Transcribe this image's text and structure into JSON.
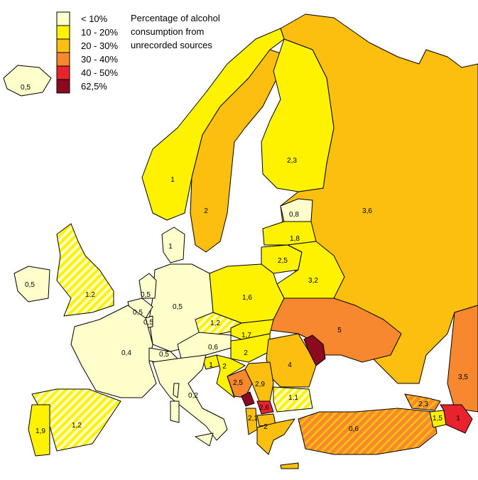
{
  "legend": {
    "title_lines": [
      "Percentage of alcohol",
      "consumption from",
      "unrecorded sources"
    ],
    "items": [
      {
        "label": "< 10%",
        "color": "#FFFFCC"
      },
      {
        "label": "10 - 20%",
        "color": "#FFF200"
      },
      {
        "label": "20 - 30%",
        "color": "#FDBF0F"
      },
      {
        "label": "30 - 40%",
        "color": "#F7882F"
      },
      {
        "label": "40 - 50%",
        "color": "#E8232D"
      },
      {
        "label": "62,5%",
        "color": "#8B0A1E"
      }
    ]
  },
  "colors": {
    "sea": "#ffffff",
    "border": "#000000",
    "hatch": "#FFFFCC"
  },
  "regions": [
    {
      "name": "iceland",
      "value": "0,5"
    },
    {
      "name": "ireland",
      "value": "0,5"
    },
    {
      "name": "united-kingdom",
      "value": "1,2"
    },
    {
      "name": "norway",
      "value": "1"
    },
    {
      "name": "sweden",
      "value": "2"
    },
    {
      "name": "finland",
      "value": "2,3"
    },
    {
      "name": "russia",
      "value": "3,6"
    },
    {
      "name": "estonia",
      "value": "0,8"
    },
    {
      "name": "latvia",
      "value": "1,8"
    },
    {
      "name": "lithuania",
      "value": "2,5"
    },
    {
      "name": "belarus",
      "value": "3,2"
    },
    {
      "name": "denmark",
      "value": "1"
    },
    {
      "name": "netherlands",
      "value": "0,5"
    },
    {
      "name": "belgium",
      "value": "0,5"
    },
    {
      "name": "luxembourg",
      "value": "0,5"
    },
    {
      "name": "germany",
      "value": "0,5"
    },
    {
      "name": "poland",
      "value": "1,6"
    },
    {
      "name": "czech-republic",
      "value": "1,2"
    },
    {
      "name": "slovakia",
      "value": "1,7"
    },
    {
      "name": "ukraine",
      "value": "5"
    },
    {
      "name": "moldova",
      "value": ""
    },
    {
      "name": "france",
      "value": "0,4"
    },
    {
      "name": "switzerland",
      "value": "0,5"
    },
    {
      "name": "austria",
      "value": "0,6"
    },
    {
      "name": "slovenia",
      "value": "1"
    },
    {
      "name": "croatia",
      "value": "2"
    },
    {
      "name": "hungary",
      "value": "2"
    },
    {
      "name": "romania",
      "value": "4"
    },
    {
      "name": "bosnia",
      "value": "2,5"
    },
    {
      "name": "serbia",
      "value": "2,9"
    },
    {
      "name": "montenegro",
      "value": ""
    },
    {
      "name": "kosovo",
      "value": "2,6"
    },
    {
      "name": "macedonia",
      "value": "2,1"
    },
    {
      "name": "albania",
      "value": ""
    },
    {
      "name": "bulgaria",
      "value": "1,1"
    },
    {
      "name": "greece",
      "value": "2"
    },
    {
      "name": "italy",
      "value": "0,2"
    },
    {
      "name": "spain",
      "value": "1,2"
    },
    {
      "name": "portugal",
      "value": "1,9"
    },
    {
      "name": "turkey",
      "value": "0,6"
    },
    {
      "name": "georgia",
      "value": "2,3"
    },
    {
      "name": "armenia",
      "value": "1,5"
    },
    {
      "name": "azerbaijan",
      "value": "1"
    },
    {
      "name": "kazakhstan",
      "value": "3,5"
    }
  ]
}
